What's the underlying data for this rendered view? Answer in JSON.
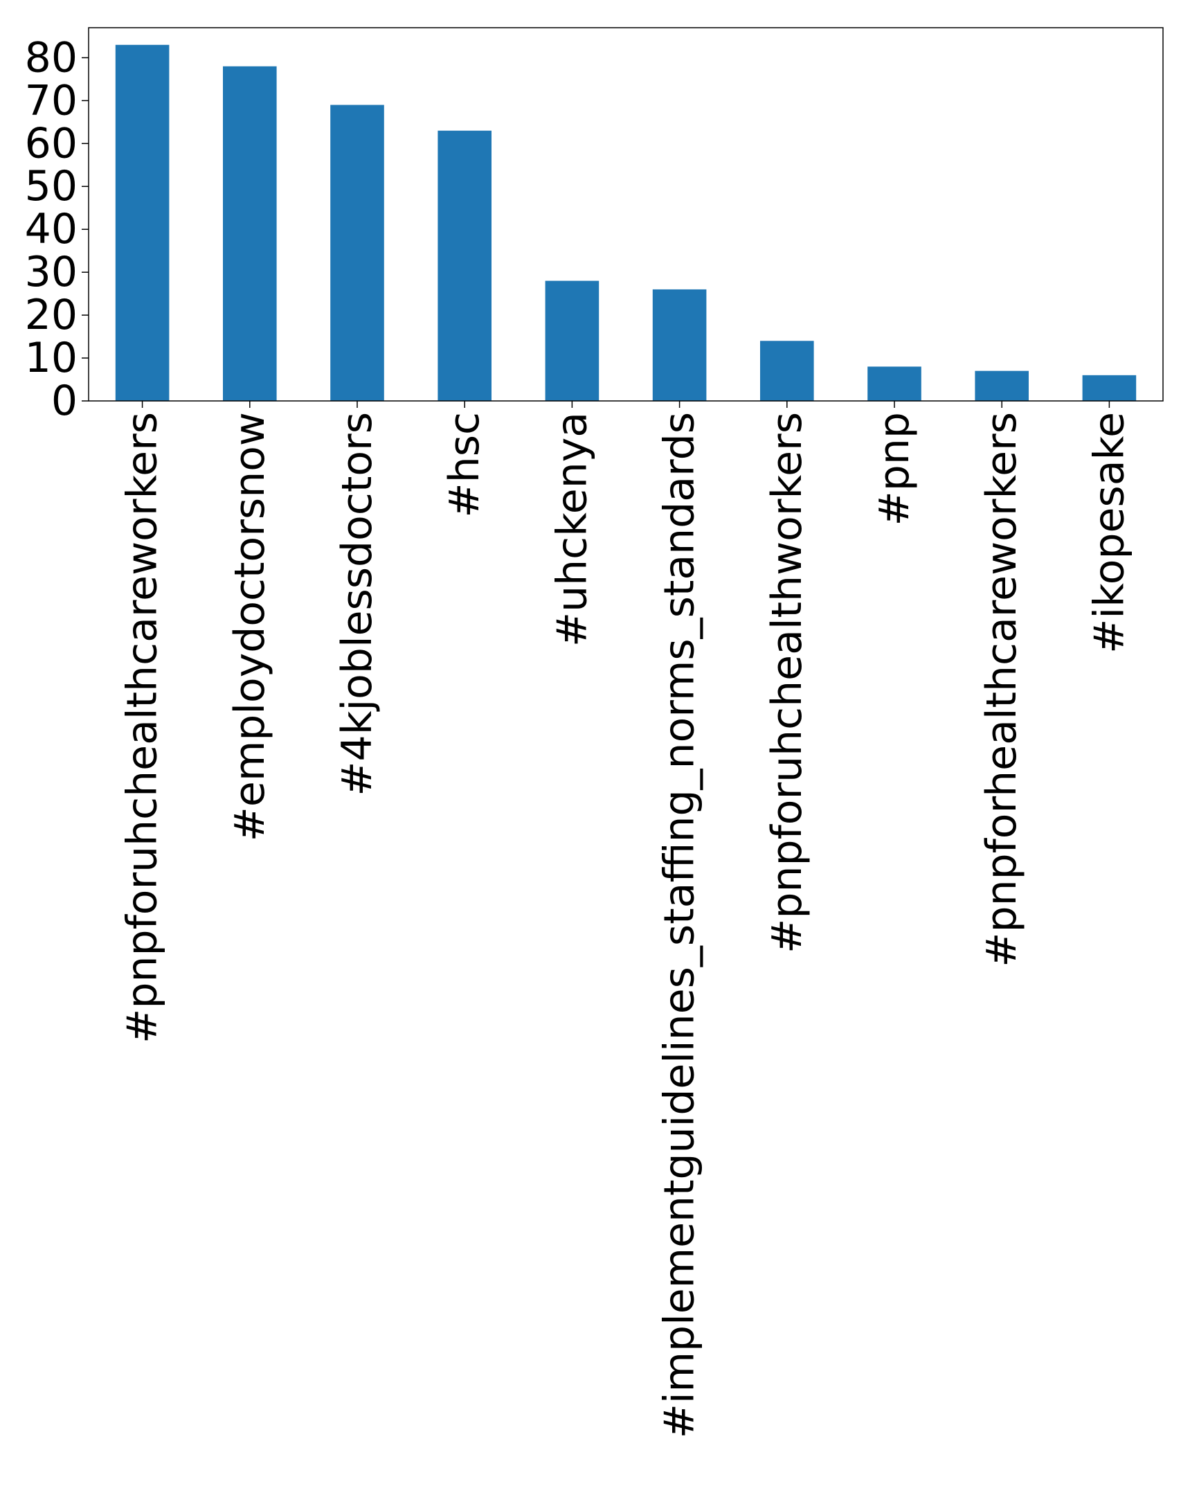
{
  "chart_data": {
    "type": "bar",
    "title": "",
    "xlabel": "",
    "ylabel": "",
    "categories": [
      "#pnpforuhchealthcareworkers",
      "#employdoctorsnow",
      "#4kjoblessdoctors",
      "#hsc",
      "#uhckenya",
      "#implementguidelines_staffing_norms_standards",
      "#pnpforuhchealthworkers",
      "#pnp",
      "#pnpforhealthcareworkers",
      "#ikopesake"
    ],
    "values": [
      83,
      78,
      69,
      63,
      28,
      26,
      14,
      8,
      7,
      6
    ],
    "ylim": [
      0,
      87
    ],
    "yticks": [
      0,
      10,
      20,
      30,
      40,
      50,
      60,
      70,
      80
    ],
    "ytick_labels": [
      "0",
      "10",
      "20",
      "30",
      "40",
      "50",
      "60",
      "70",
      "80"
    ],
    "grid": false,
    "legend": "none",
    "bar_color": "#1f77b4"
  }
}
